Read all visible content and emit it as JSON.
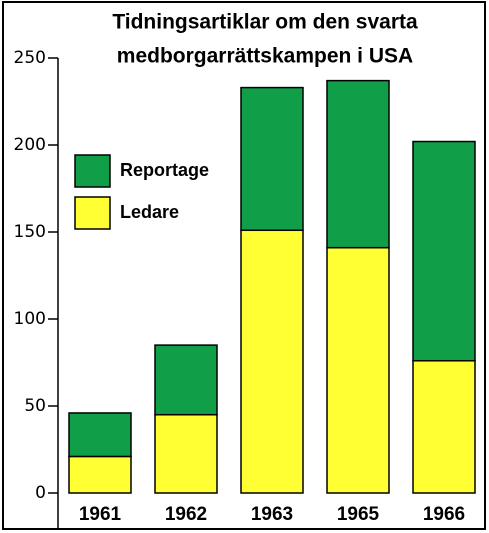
{
  "chart_data": {
    "type": "stacked_bar",
    "title": [
      "Tidningsartiklar om den svarta",
      "medborgarrättskampen i USA"
    ],
    "categories": [
      "1961",
      "1962",
      "1963",
      "1965",
      "1966"
    ],
    "series": [
      {
        "name": "Ledare",
        "color": "#ffff33",
        "values": [
          21,
          45,
          151,
          141,
          76
        ]
      },
      {
        "name": "Reportage",
        "color": "#109e48",
        "values": [
          25,
          40,
          82,
          96,
          126
        ]
      }
    ],
    "ylim": [
      0,
      250
    ],
    "yticks": [
      0,
      50,
      100,
      150,
      200,
      250
    ],
    "legend": "upper left"
  }
}
